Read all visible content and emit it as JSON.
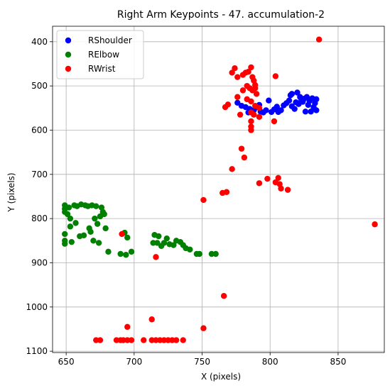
{
  "chart_data": {
    "type": "scatter",
    "title": "Right Arm Keypoints - 47. accumulation-2",
    "xlabel": "X (pixels)",
    "ylabel": "Y (pixels)",
    "xlim": [
      640,
      884
    ],
    "ylim": [
      1103,
      365
    ],
    "y_inverted": true,
    "grid": true,
    "legend_position": "top-left",
    "x_ticks": [
      650,
      700,
      750,
      800,
      850
    ],
    "y_ticks": [
      400,
      500,
      600,
      700,
      800,
      900,
      1000,
      1100
    ],
    "series": [
      {
        "name": "RShoulder",
        "color": "#0000ff",
        "points": [
          [
            776,
            538
          ],
          [
            779,
            545
          ],
          [
            782,
            548
          ],
          [
            785,
            552
          ],
          [
            788,
            555
          ],
          [
            790,
            549
          ],
          [
            792,
            543
          ],
          [
            795,
            560
          ],
          [
            797,
            555
          ],
          [
            799,
            533
          ],
          [
            801,
            559
          ],
          [
            803,
            553
          ],
          [
            805,
            547
          ],
          [
            806,
            559
          ],
          [
            808,
            555
          ],
          [
            810,
            544
          ],
          [
            812,
            539
          ],
          [
            814,
            533
          ],
          [
            815,
            521
          ],
          [
            816,
            546
          ],
          [
            818,
            552
          ],
          [
            819,
            537
          ],
          [
            821,
            541
          ],
          [
            822,
            525
          ],
          [
            823,
            532
          ],
          [
            824,
            536
          ],
          [
            825,
            529
          ],
          [
            826,
            558
          ],
          [
            827,
            525
          ],
          [
            828,
            543
          ],
          [
            829,
            534
          ],
          [
            830,
            558
          ],
          [
            831,
            528
          ],
          [
            832,
            548
          ],
          [
            833,
            539
          ],
          [
            834,
            555
          ],
          [
            834,
            530
          ],
          [
            784,
            560
          ],
          [
            787,
            558
          ],
          [
            793,
            558
          ],
          [
            816,
            518
          ],
          [
            820,
            515
          ]
        ]
      },
      {
        "name": "RElbow",
        "color": "#008000",
        "points": [
          [
            649,
            770
          ],
          [
            649,
            778
          ],
          [
            649,
            785
          ],
          [
            649,
            835
          ],
          [
            649,
            850
          ],
          [
            649,
            857
          ],
          [
            651,
            790
          ],
          [
            652,
            775
          ],
          [
            653,
            800
          ],
          [
            653,
            818
          ],
          [
            654,
            853
          ],
          [
            656,
            770
          ],
          [
            657,
            810
          ],
          [
            658,
            772
          ],
          [
            660,
            840
          ],
          [
            661,
            768
          ],
          [
            663,
            838
          ],
          [
            664,
            770
          ],
          [
            666,
            772
          ],
          [
            667,
            822
          ],
          [
            668,
            830
          ],
          [
            669,
            770
          ],
          [
            670,
            850
          ],
          [
            671,
            800
          ],
          [
            672,
            772
          ],
          [
            673,
            812
          ],
          [
            674,
            855
          ],
          [
            675,
            795
          ],
          [
            676,
            775
          ],
          [
            677,
            785
          ],
          [
            678,
            790
          ],
          [
            679,
            822
          ],
          [
            681,
            875
          ],
          [
            690,
            880
          ],
          [
            693,
            832
          ],
          [
            694,
            882
          ],
          [
            695,
            843
          ],
          [
            698,
            875
          ],
          [
            714,
            855
          ],
          [
            715,
            837
          ],
          [
            717,
            855
          ],
          [
            718,
            840
          ],
          [
            720,
            862
          ],
          [
            722,
            855
          ],
          [
            724,
            845
          ],
          [
            726,
            858
          ],
          [
            729,
            860
          ],
          [
            731,
            850
          ],
          [
            734,
            853
          ],
          [
            736,
            860
          ],
          [
            738,
            867
          ],
          [
            741,
            870
          ],
          [
            746,
            880
          ],
          [
            748,
            880
          ],
          [
            757,
            880
          ],
          [
            760,
            880
          ]
        ]
      },
      {
        "name": "RWrist",
        "color": "#ff0000",
        "points": [
          [
            836,
            395
          ],
          [
            772,
            470
          ],
          [
            776,
            480
          ],
          [
            780,
            475
          ],
          [
            782,
            470
          ],
          [
            784,
            468
          ],
          [
            786,
            458
          ],
          [
            787,
            480
          ],
          [
            788,
            488
          ],
          [
            789,
            498
          ],
          [
            789,
            505
          ],
          [
            780,
            510
          ],
          [
            783,
            500
          ],
          [
            785,
            505
          ],
          [
            787,
            510
          ],
          [
            790,
            518
          ],
          [
            783,
            530
          ],
          [
            786,
            535
          ],
          [
            789,
            545
          ],
          [
            792,
            550
          ],
          [
            786,
            560
          ],
          [
            788,
            565
          ],
          [
            792,
            570
          ],
          [
            786,
            580
          ],
          [
            786,
            592
          ],
          [
            786,
            600
          ],
          [
            767,
            548
          ],
          [
            769,
            542
          ],
          [
            778,
            565
          ],
          [
            804,
            478
          ],
          [
            803,
            580
          ],
          [
            776,
            525
          ],
          [
            774,
            460
          ],
          [
            779,
            642
          ],
          [
            781,
            662
          ],
          [
            772,
            688
          ],
          [
            765,
            742
          ],
          [
            768,
            740
          ],
          [
            792,
            720
          ],
          [
            798,
            710
          ],
          [
            804,
            718
          ],
          [
            806,
            708
          ],
          [
            807,
            722
          ],
          [
            808,
            732
          ],
          [
            813,
            735
          ],
          [
            751,
            758
          ],
          [
            877,
            813
          ],
          [
            691,
            835
          ],
          [
            716,
            887
          ],
          [
            766,
            975
          ],
          [
            713,
            1028
          ],
          [
            751,
            1048
          ],
          [
            695,
            1045
          ],
          [
            672,
            1075
          ],
          [
            675,
            1075
          ],
          [
            687,
            1075
          ],
          [
            690,
            1075
          ],
          [
            692,
            1075
          ],
          [
            695,
            1075
          ],
          [
            698,
            1075
          ],
          [
            707,
            1075
          ],
          [
            713,
            1075
          ],
          [
            716,
            1075
          ],
          [
            719,
            1075
          ],
          [
            722,
            1075
          ],
          [
            725,
            1075
          ],
          [
            728,
            1075
          ],
          [
            731,
            1075
          ],
          [
            736,
            1075
          ]
        ]
      }
    ]
  }
}
